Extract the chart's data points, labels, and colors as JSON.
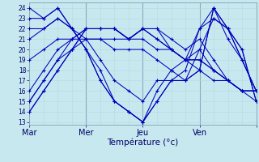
{
  "xlabel": "Température (°c)",
  "background_color": "#c8e8f0",
  "line_color": "#0000bb",
  "grid_color_minor": "#b8d8e0",
  "grid_color_major": "#88aabb",
  "yticks": [
    13,
    14,
    15,
    16,
    17,
    18,
    19,
    20,
    21,
    22,
    23,
    24
  ],
  "ylim": [
    12.7,
    24.5
  ],
  "xlim": [
    0,
    96
  ],
  "day_positions": [
    0,
    24,
    48,
    72,
    96
  ],
  "day_labels": [
    "Mar",
    "Mer",
    "Jeu",
    "Ven",
    ""
  ],
  "x_points": [
    0,
    6,
    12,
    18,
    24,
    30,
    36,
    42,
    48,
    54,
    60,
    66,
    72,
    78,
    84,
    90,
    96
  ],
  "series": [
    [
      14,
      16,
      18,
      20,
      21,
      21,
      21,
      21,
      21,
      20,
      20,
      19,
      18,
      17,
      17,
      16,
      16
    ],
    [
      14,
      16,
      18,
      20,
      22,
      22,
      22,
      21,
      22,
      21,
      20,
      19,
      19,
      18,
      17,
      16,
      16
    ],
    [
      15,
      17,
      19,
      20,
      22,
      22,
      22,
      21,
      22,
      21,
      20,
      19,
      19,
      18,
      17,
      16,
      16
    ],
    [
      15,
      17,
      19,
      21,
      22,
      22,
      22,
      21,
      22,
      22,
      20,
      19,
      20,
      18,
      17,
      16,
      16
    ],
    [
      16,
      18,
      20,
      21,
      22,
      22,
      22,
      21,
      22,
      22,
      21,
      20,
      21,
      19,
      17,
      16,
      15
    ],
    [
      19,
      20,
      21,
      21,
      21,
      21,
      20,
      20,
      20,
      19,
      18,
      19,
      22,
      23,
      22,
      20,
      15
    ],
    [
      21,
      22,
      23,
      22,
      21,
      19,
      17,
      16,
      15,
      17,
      17,
      18,
      22,
      24,
      22,
      20,
      15
    ],
    [
      22,
      22,
      23,
      22,
      20,
      18,
      15,
      14,
      13,
      15,
      17,
      17,
      20,
      23,
      22,
      19,
      16
    ],
    [
      23,
      23,
      24,
      22,
      20,
      17,
      15,
      14,
      13,
      15,
      17,
      17,
      18,
      24,
      22,
      19,
      16
    ],
    [
      24,
      23,
      24,
      22,
      20,
      17,
      15,
      14,
      13,
      16,
      18,
      17,
      18,
      24,
      21,
      19,
      16
    ]
  ]
}
